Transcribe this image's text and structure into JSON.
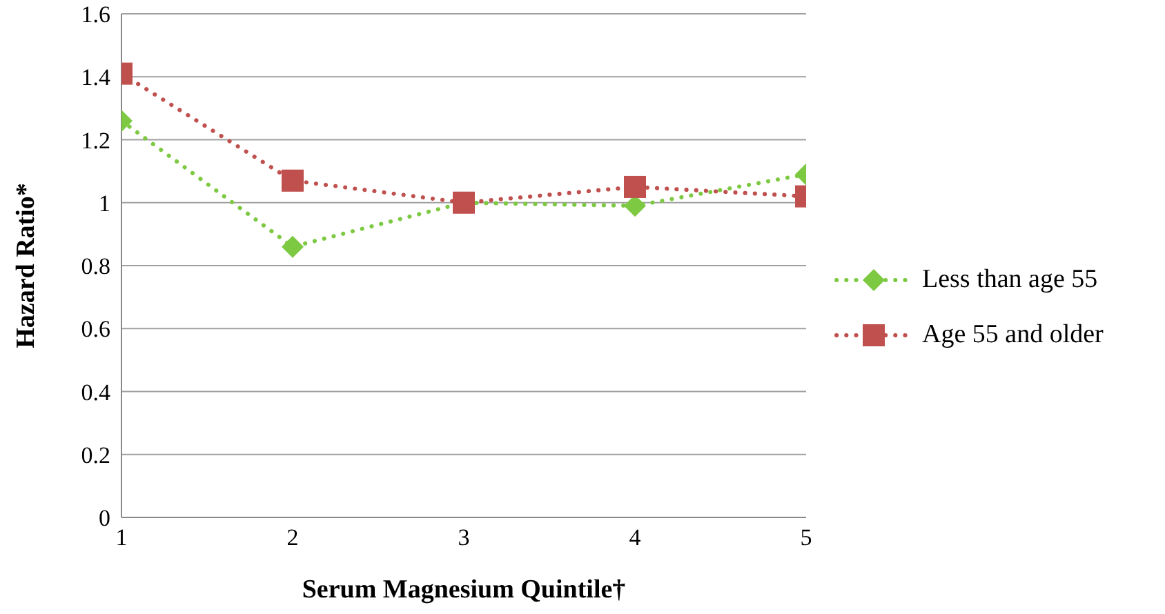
{
  "chart_data": {
    "type": "line",
    "xlabel": "Serum Magnesium Quintile†",
    "ylabel": "Hazard Ratio*",
    "x": [
      1,
      2,
      3,
      4,
      5
    ],
    "xlim": [
      1,
      5
    ],
    "xticks": [
      1,
      2,
      3,
      4,
      5
    ],
    "ylim": [
      0,
      1.6
    ],
    "yticks": [
      0,
      {
        "value": 0.2,
        "label": "0.2"
      },
      {
        "value": 0.4,
        "label": "0.4"
      },
      {
        "value": 0.6,
        "label": "0.6"
      },
      {
        "value": 0.8,
        "label": "0.8"
      },
      1,
      {
        "value": 1.2,
        "label": "1.2"
      },
      {
        "value": 1.4,
        "label": "1.4"
      },
      {
        "value": 1.6,
        "label": "1.6"
      }
    ],
    "grid": "y",
    "legend": "right",
    "line_style": "dotted",
    "series": [
      {
        "name": "Less than age 55",
        "color": "#7dc942",
        "marker": "diamond",
        "values": [
          1.26,
          0.86,
          1.0,
          0.99,
          1.09
        ]
      },
      {
        "name": "Age 55 and older",
        "color": "#c0504d",
        "marker": "square",
        "values": [
          1.41,
          1.07,
          1.0,
          1.05,
          1.02
        ]
      }
    ]
  }
}
